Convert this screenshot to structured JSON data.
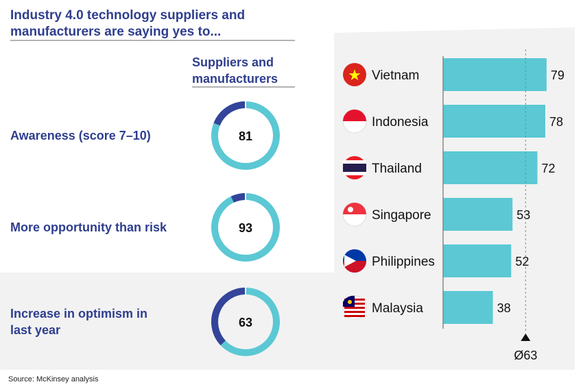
{
  "title_lines": [
    "Industry 4.0 technology suppliers and",
    "manufacturers are saying yes to..."
  ],
  "column_header_lines": [
    "Suppliers and",
    "manufacturers"
  ],
  "source": "Source: McKinsey analysis",
  "colors": {
    "accent": "#5bc8d4",
    "dark": "#33449a",
    "text": "#2f3e8e",
    "panel": "#f2f2f2"
  },
  "chart_data": [
    {
      "type": "pie",
      "subtype": "donut",
      "items": [
        {
          "label_lines": [
            "Awareness (score 7–10)"
          ],
          "value": 81
        },
        {
          "label_lines": [
            "More opportunity than risk"
          ],
          "value": 93
        },
        {
          "label_lines": [
            "Increase in optimism in",
            "last year"
          ],
          "value": 63
        }
      ]
    },
    {
      "type": "bar",
      "orientation": "horizontal",
      "categories": [
        "Vietnam",
        "Indonesia",
        "Thailand",
        "Singapore",
        "Philippines",
        "Malaysia"
      ],
      "icons": [
        "vietnam-flag-icon",
        "indonesia-flag-icon",
        "thailand-flag-icon",
        "singapore-flag-icon",
        "philippines-flag-icon",
        "malaysia-flag-icon"
      ],
      "values": [
        79,
        78,
        72,
        53,
        52,
        38
      ],
      "average": {
        "value": 63,
        "label": "Ø63"
      },
      "xlim": [
        0,
        100
      ]
    }
  ]
}
